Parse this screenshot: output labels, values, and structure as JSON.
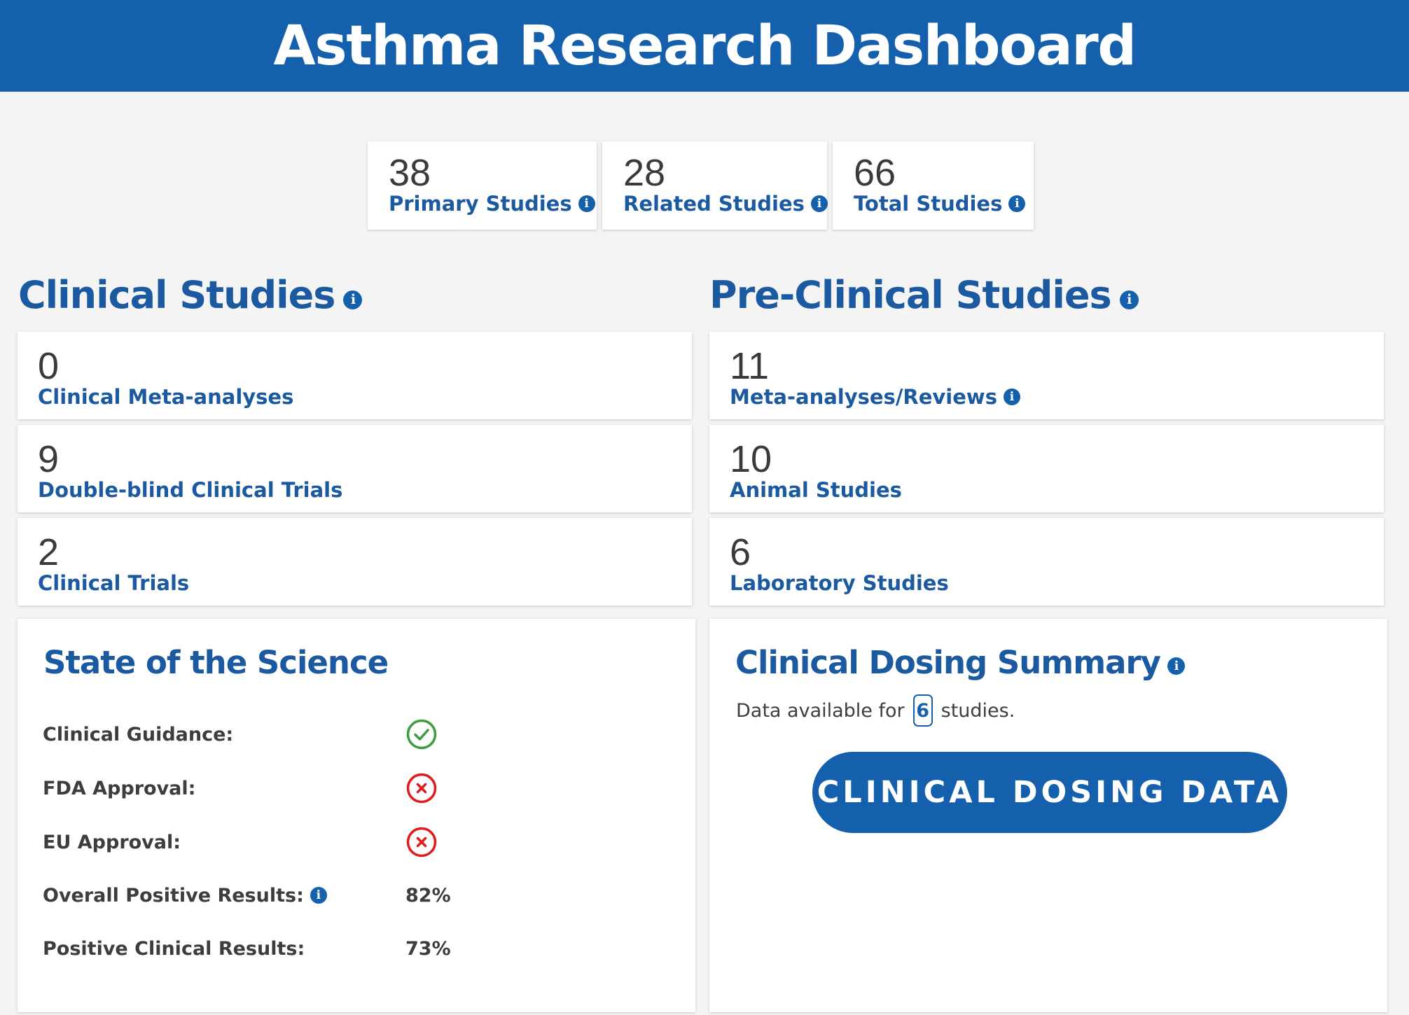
{
  "header": {
    "title": "Asthma Research Dashboard"
  },
  "summary": [
    {
      "value": "38",
      "label": "Primary Studies"
    },
    {
      "value": "28",
      "label": "Related Studies"
    },
    {
      "value": "66",
      "label": "Total Studies"
    }
  ],
  "clinical": {
    "title": "Clinical Studies",
    "rows": [
      {
        "value": "0",
        "label": "Clinical Meta-analyses"
      },
      {
        "value": "9",
        "label": "Double-blind Clinical Trials"
      },
      {
        "value": "2",
        "label": "Clinical Trials"
      }
    ]
  },
  "preclinical": {
    "title": "Pre-Clinical Studies",
    "rows": [
      {
        "value": "11",
        "label": "Meta-analyses/Reviews"
      },
      {
        "value": "10",
        "label": "Animal Studies"
      },
      {
        "value": "6",
        "label": "Laboratory Studies"
      }
    ]
  },
  "science": {
    "title": "State of the Science",
    "clinical_guidance": {
      "label": "Clinical Guidance:",
      "status": "check-icon"
    },
    "fda_approval": {
      "label": "FDA Approval:",
      "status": "x-icon"
    },
    "eu_approval": {
      "label": "EU Approval:",
      "status": "x-icon"
    },
    "overall_positive": {
      "label": "Overall Positive Results:",
      "value": "82%"
    },
    "positive_clinical": {
      "label": "Positive Clinical Results:",
      "value": "73%"
    }
  },
  "dosing": {
    "title": "Clinical Dosing Summary",
    "available_prefix": "Data available for",
    "available_count": "6",
    "available_suffix": "studies.",
    "button_label": "CLINICAL DOSING DATA"
  },
  "info_glyph": "i",
  "colors": {
    "brand": "#1460ad",
    "label_blue": "#1b5aa0",
    "success": "#3d9b40",
    "danger": "#e01b1b",
    "background": "#f4f4f4"
  }
}
